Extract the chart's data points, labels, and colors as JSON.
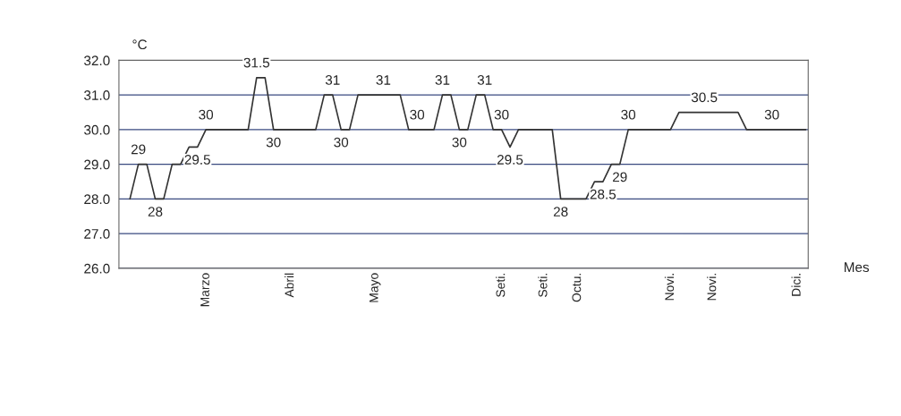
{
  "chart_data": {
    "type": "line",
    "xlabel": "Mes",
    "ylabel": "°C",
    "categories": [
      null,
      null,
      null,
      null,
      null,
      null,
      null,
      null,
      null,
      "Marzo",
      null,
      null,
      null,
      null,
      null,
      null,
      null,
      null,
      null,
      "Abril",
      null,
      null,
      null,
      null,
      null,
      null,
      null,
      null,
      null,
      "Mayo",
      null,
      null,
      null,
      null,
      null,
      null,
      null,
      null,
      null,
      null,
      null,
      null,
      null,
      null,
      "Seti.",
      null,
      null,
      null,
      null,
      "Seti.",
      null,
      null,
      null,
      "Octu.",
      null,
      null,
      null,
      null,
      null,
      null,
      null,
      null,
      null,
      null,
      "Novi.",
      null,
      null,
      null,
      null,
      "Novi.",
      null,
      null,
      null,
      null,
      null,
      null,
      null,
      null,
      null,
      "Dici.",
      null
    ],
    "series": [
      {
        "color": "#333333",
        "values": [
          28,
          29,
          29,
          28,
          28,
          29,
          29,
          29.5,
          29.5,
          30,
          30,
          30,
          30,
          30,
          30,
          31.5,
          31.5,
          30,
          30,
          30,
          30,
          30,
          30,
          31,
          31,
          30,
          30,
          31,
          31,
          31,
          31,
          31,
          31,
          30,
          30,
          30,
          30,
          31,
          31,
          30,
          30,
          31,
          31,
          30,
          30,
          29.5,
          30,
          30,
          30,
          30,
          30,
          28,
          28,
          28,
          28,
          28.5,
          28.5,
          29,
          29,
          30,
          30,
          30,
          30,
          30,
          30,
          30.5,
          30.5,
          30.5,
          30.5,
          30.5,
          30.5,
          30.5,
          30.5,
          30,
          30,
          30,
          30,
          30,
          30,
          30,
          30
        ],
        "value_labels": [
          null,
          "29",
          null,
          "28",
          null,
          null,
          null,
          null,
          "29.5",
          "30",
          null,
          null,
          null,
          null,
          null,
          "31.5",
          null,
          "30",
          null,
          null,
          null,
          null,
          null,
          null,
          "31",
          "30",
          null,
          null,
          null,
          null,
          "31",
          null,
          null,
          null,
          "30",
          null,
          null,
          "31",
          null,
          "30",
          null,
          null,
          "31",
          null,
          "30",
          "29.5",
          null,
          null,
          null,
          null,
          null,
          "28",
          null,
          null,
          null,
          null,
          "28.5",
          null,
          "29",
          "30",
          null,
          null,
          null,
          null,
          null,
          null,
          null,
          null,
          "30.5",
          null,
          null,
          null,
          null,
          null,
          null,
          null,
          "30",
          null,
          null,
          null,
          null
        ]
      }
    ],
    "ylim": [
      26,
      32
    ],
    "yticks": [
      {
        "value": 26,
        "label": "26.0"
      },
      {
        "value": 27,
        "label": "27.0"
      },
      {
        "value": 28,
        "label": "28.0"
      },
      {
        "value": 29,
        "label": "29.0"
      },
      {
        "value": 30,
        "label": "30.0"
      },
      {
        "value": 31,
        "label": "31.0"
      },
      {
        "value": 32,
        "label": "32.0"
      }
    ],
    "grid": "y",
    "legend": false,
    "marker": "none",
    "line_style": "solid"
  }
}
